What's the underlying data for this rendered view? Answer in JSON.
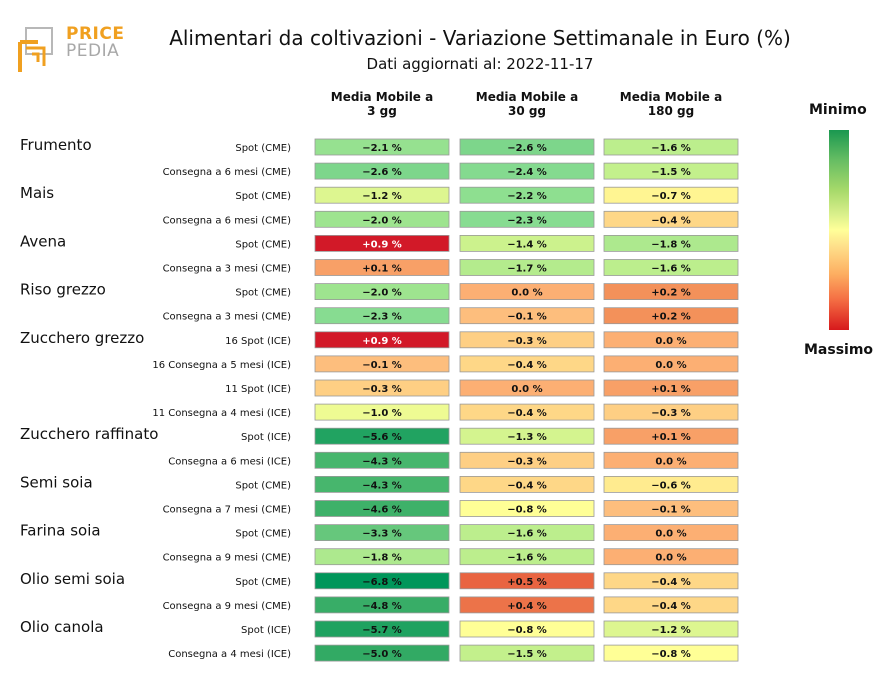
{
  "logo": {
    "word1": "PRICE",
    "word2": "PEDIA",
    "colors": {
      "primary": "#f0a020",
      "secondary": "#a8a8a8"
    }
  },
  "title": "Alimentari da coltivazioni - Variazione Settimanale in Euro (%)",
  "subtitle": "Dati aggiornati al: 2022-11-17",
  "legend": {
    "min_label": "Minimo",
    "max_label": "Massimo"
  },
  "chart_data": {
    "type": "heatmap",
    "title": "Alimentari da coltivazioni - Variazione Settimanale in Euro (%)",
    "subtitle": "Dati aggiornati al: 2022-11-17",
    "columns": [
      "Media Mobile a\n3 gg",
      "Media Mobile a\n30 gg",
      "Media Mobile a\n180 gg"
    ],
    "colorscale": {
      "low_label": "Minimo",
      "high_label": "Massimo",
      "low_color": "#1a9850",
      "mid_color": "#ffff99",
      "high_color": "#d7191c"
    },
    "groups": [
      {
        "name": "Frumento",
        "rows": [
          {
            "label": "Spot (CME)",
            "values": [
              -2.1,
              -2.6,
              -1.6
            ]
          },
          {
            "label": "Consegna a 6 mesi (CME)",
            "values": [
              -2.6,
              -2.4,
              -1.5
            ]
          }
        ]
      },
      {
        "name": "Mais",
        "rows": [
          {
            "label": "Spot (CME)",
            "values": [
              -1.2,
              -2.2,
              -0.7
            ]
          },
          {
            "label": "Consegna a 6 mesi (CME)",
            "values": [
              -2.0,
              -2.3,
              -0.4
            ]
          }
        ]
      },
      {
        "name": "Avena",
        "rows": [
          {
            "label": "Spot (CME)",
            "values": [
              0.9,
              -1.4,
              -1.8
            ]
          },
          {
            "label": "Consegna a 3 mesi (CME)",
            "values": [
              0.1,
              -1.7,
              -1.6
            ]
          }
        ]
      },
      {
        "name": "Riso grezzo",
        "rows": [
          {
            "label": "Spot (CME)",
            "values": [
              -2.0,
              0.0,
              0.2
            ]
          },
          {
            "label": "Consegna a 3 mesi (CME)",
            "values": [
              -2.3,
              -0.1,
              0.2
            ]
          }
        ]
      },
      {
        "name": "Zucchero grezzo",
        "rows": [
          {
            "label": "16 Spot (ICE)",
            "values": [
              0.9,
              -0.3,
              0.0
            ]
          },
          {
            "label": "16 Consegna a 5 mesi (ICE)",
            "values": [
              -0.1,
              -0.4,
              0.0
            ]
          },
          {
            "label": "11 Spot (ICE)",
            "values": [
              -0.3,
              0.0,
              0.1
            ]
          },
          {
            "label": "11 Consegna a 4 mesi (ICE)",
            "values": [
              -1.0,
              -0.4,
              -0.3
            ]
          }
        ]
      },
      {
        "name": "Zucchero raffinato",
        "rows": [
          {
            "label": "Spot (ICE)",
            "values": [
              -5.6,
              -1.3,
              0.1
            ]
          },
          {
            "label": "Consegna a 6 mesi (ICE)",
            "values": [
              -4.3,
              -0.3,
              0.0
            ]
          }
        ]
      },
      {
        "name": "Semi soia",
        "rows": [
          {
            "label": "Spot (CME)",
            "values": [
              -4.3,
              -0.4,
              -0.6
            ]
          },
          {
            "label": "Consegna a 7 mesi (CME)",
            "values": [
              -4.6,
              -0.8,
              -0.1
            ]
          }
        ]
      },
      {
        "name": "Farina soia",
        "rows": [
          {
            "label": "Spot (CME)",
            "values": [
              -3.3,
              -1.6,
              0.0
            ]
          },
          {
            "label": "Consegna a 9 mesi (CME)",
            "values": [
              -1.8,
              -1.6,
              0.0
            ]
          }
        ]
      },
      {
        "name": "Olio semi soia",
        "rows": [
          {
            "label": "Spot (CME)",
            "values": [
              -6.8,
              0.5,
              -0.4
            ]
          },
          {
            "label": "Consegna a 9 mesi (CME)",
            "values": [
              -4.8,
              0.4,
              -0.4
            ]
          }
        ]
      },
      {
        "name": "Olio canola",
        "rows": [
          {
            "label": "Spot (ICE)",
            "values": [
              -5.7,
              -0.8,
              -1.2
            ]
          },
          {
            "label": "Consegna a 4 mesi (ICE)",
            "values": [
              -5.0,
              -1.5,
              -0.8
            ]
          }
        ]
      }
    ]
  }
}
